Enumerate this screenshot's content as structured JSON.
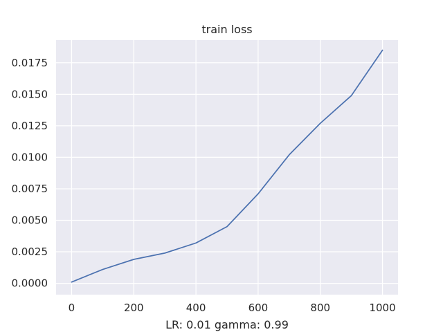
{
  "chart_data": {
    "type": "line",
    "title": "train loss",
    "xlabel": "LR: 0.01 gamma: 0.99",
    "ylabel": "",
    "xlim": [
      -50,
      1050
    ],
    "ylim": [
      -0.0009,
      0.0193
    ],
    "xticks": [
      0,
      200,
      400,
      600,
      800,
      1000
    ],
    "xtick_labels": [
      "0",
      "200",
      "400",
      "600",
      "800",
      "1000"
    ],
    "yticks": [
      0.0,
      0.0025,
      0.005,
      0.0075,
      0.01,
      0.0125,
      0.015,
      0.0175
    ],
    "ytick_labels": [
      "0.0000",
      "0.0025",
      "0.0050",
      "0.0075",
      "0.0100",
      "0.0125",
      "0.0150",
      "0.0175"
    ],
    "grid": true,
    "series": [
      {
        "x": [
          0,
          100,
          200,
          300,
          400,
          500,
          600,
          700,
          800,
          900,
          1000
        ],
        "values": [
          0.0001,
          0.0011,
          0.0019,
          0.0024,
          0.0032,
          0.0045,
          0.0071,
          0.0102,
          0.0127,
          0.0149,
          0.0185
        ]
      }
    ],
    "colors": {
      "background": "#eaeaf2",
      "grid": "#ffffff",
      "line": "#4c72b0"
    }
  }
}
